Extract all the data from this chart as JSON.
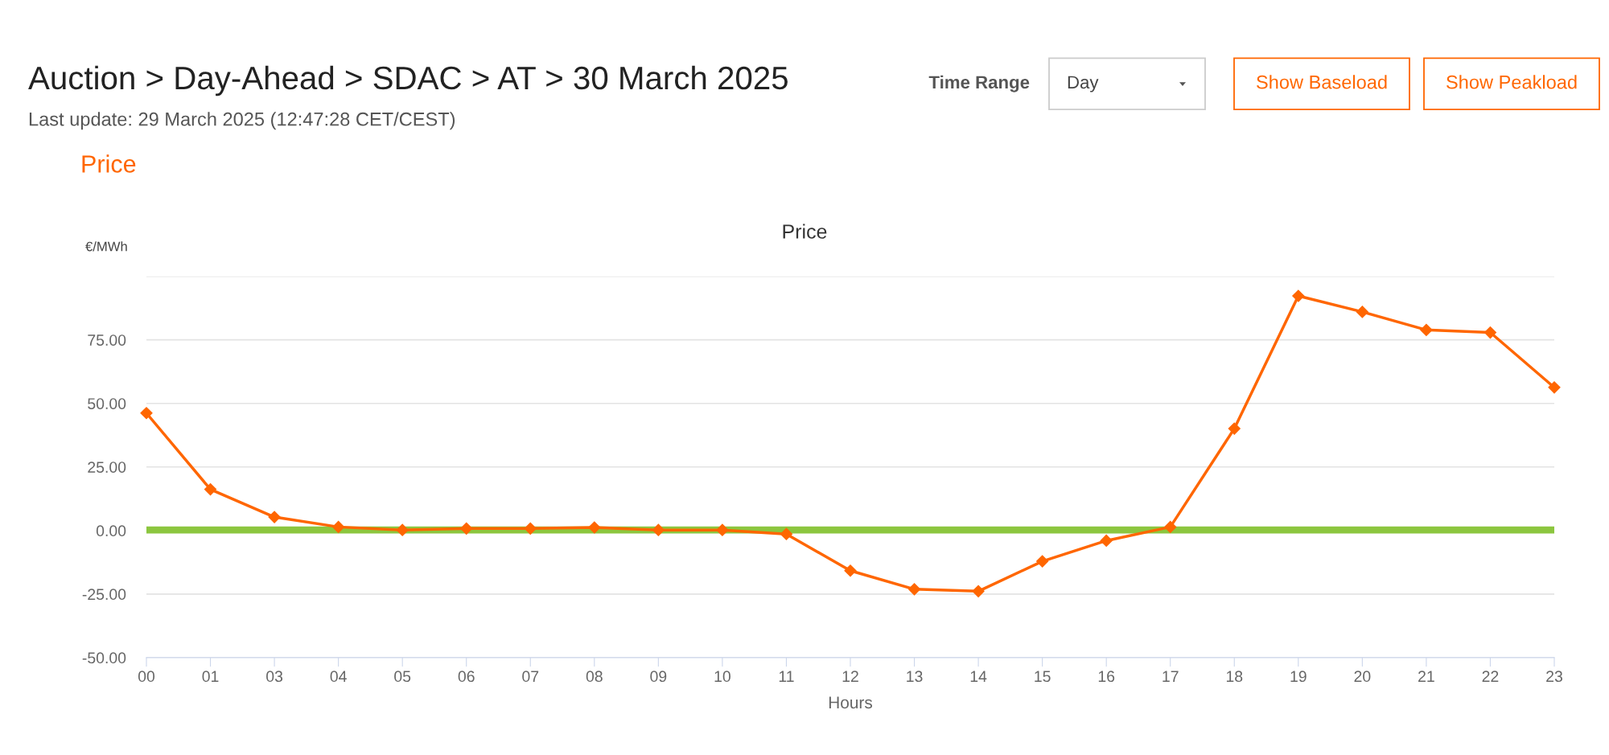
{
  "chart_data": {
    "type": "line",
    "title": "Auction > Day-Ahead > SDAC > AT > 30 March 2025",
    "subtitle": "Last update: 29 March 2025 (12:47:28 CET/CEST)",
    "annotations": [
      "Price",
      "Time Range",
      "Day",
      "Show Baseload",
      "Show Peakload",
      "Price"
    ],
    "ylabel": "€/MWh",
    "xlabel": "Hours",
    "categories": [
      "00",
      "01",
      "03",
      "04",
      "05",
      "06",
      "07",
      "08",
      "09",
      "10",
      "11",
      "12",
      "13",
      "14",
      "15",
      "16",
      "17",
      "18",
      "19",
      "20",
      "21",
      "22",
      "23"
    ],
    "series": [
      {
        "color": "#ff6600",
        "values": [
          46.2,
          16.2,
          5.3,
          1.4,
          0.2,
          0.8,
          0.8,
          1.2,
          0.2,
          0.2,
          -1.4,
          -15.8,
          -23.1,
          -23.9,
          -12.1,
          -4.0,
          1.4,
          40.1,
          92.3,
          86.0,
          78.9,
          77.9,
          56.3
        ]
      }
    ],
    "ylim": [
      -50,
      100
    ],
    "yticks": [
      {
        "value": -50,
        "label": "-50.00"
      },
      {
        "value": -25,
        "label": "-25.00"
      },
      {
        "value": 0,
        "label": "0.00"
      },
      {
        "value": 25,
        "label": "25.00"
      },
      {
        "value": 50,
        "label": "50.00"
      },
      {
        "value": 75,
        "label": "75.00"
      },
      {
        "value": 100,
        "label": null
      }
    ],
    "ref_lines": [
      {
        "axis": "y",
        "value": 0.8,
        "color": "#8cc63f"
      },
      {
        "axis": "y",
        "value": -0.4,
        "color": "#8cc63f"
      }
    ],
    "grid": "y",
    "marker": "diamond",
    "line_style": "solid"
  }
}
